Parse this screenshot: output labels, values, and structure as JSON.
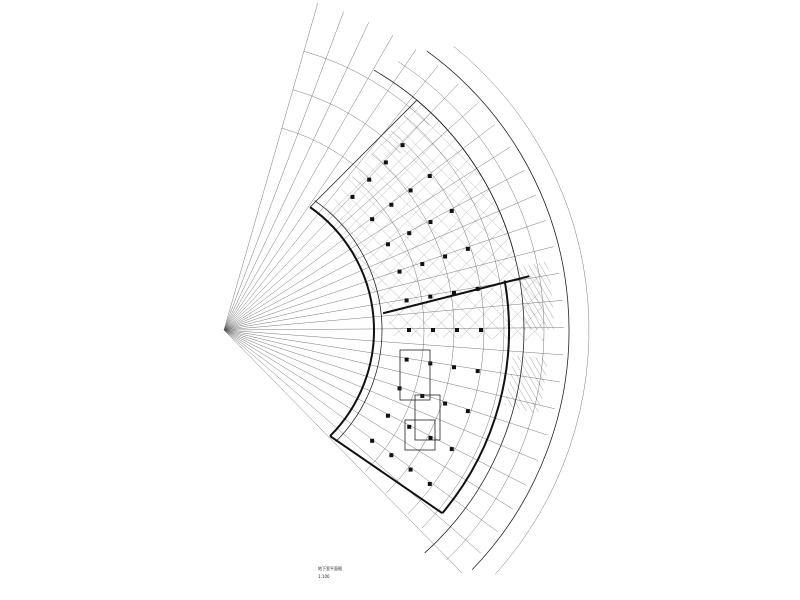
{
  "drawing": {
    "title": "地下室平面图",
    "scale": "1:100"
  }
}
